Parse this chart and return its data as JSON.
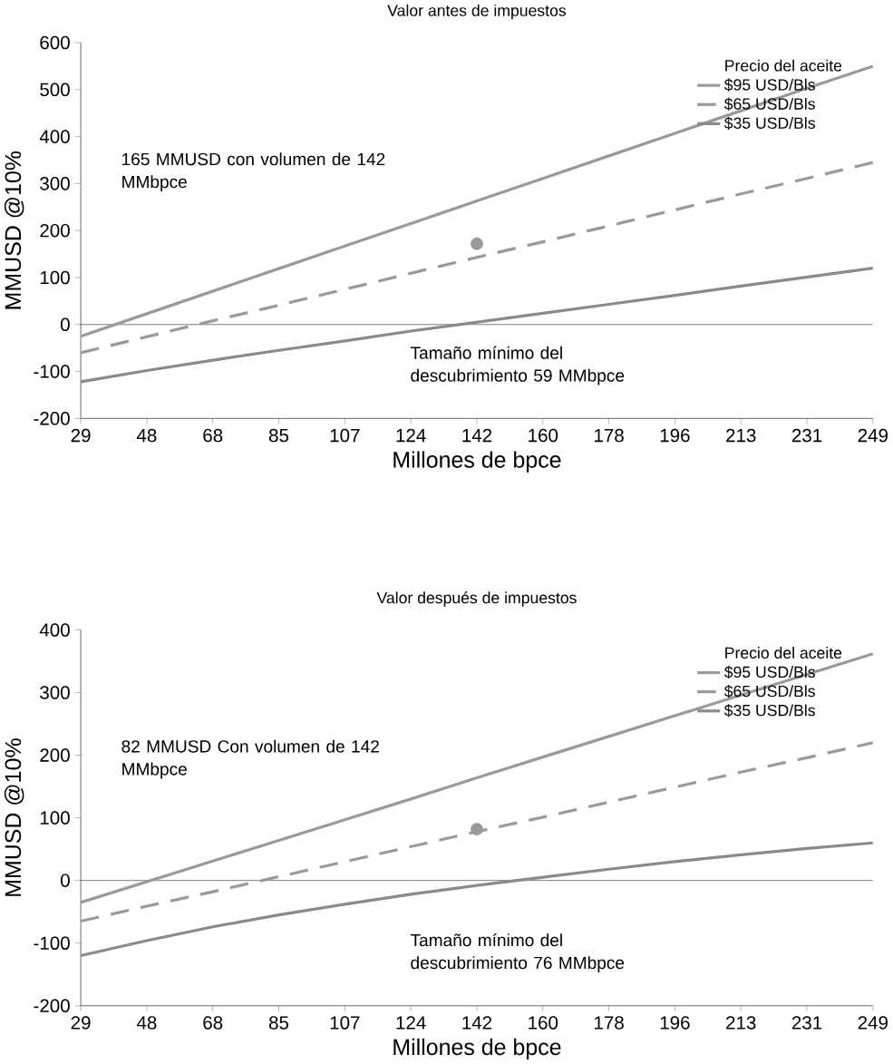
{
  "chart_data": [
    {
      "type": "line",
      "title": "Valor antes de impuestos",
      "xlabel": "Millones de bpce",
      "ylabel": "MMUSD @10%",
      "legend_title": "Precio del aceite",
      "categories": [
        "29",
        "48",
        "68",
        "85",
        "107",
        "124",
        "142",
        "160",
        "178",
        "196",
        "213",
        "231",
        "249"
      ],
      "series": [
        {
          "name": "$95 USD/Bls",
          "color": "#9a9a9a",
          "line_style": "solid",
          "values": [
            -25,
            23,
            71,
            119,
            167,
            215,
            263,
            311,
            359,
            407,
            455,
            503,
            550
          ]
        },
        {
          "name": "$65 USD/Bls",
          "color": "#9a9a9a",
          "line_style": "dashed",
          "values": [
            -60,
            -26,
            8,
            41,
            75,
            109,
            143,
            176,
            210,
            244,
            278,
            311,
            345
          ]
        },
        {
          "name": "$35 USD/Bls",
          "color": "#8a8a8a",
          "line_style": "solid",
          "values": [
            -122,
            -98,
            -76,
            -55,
            -35,
            -14,
            5,
            24,
            43,
            62,
            82,
            101,
            120
          ]
        },
        {
          "type": "scatter",
          "color": "#9a9a9a",
          "marker": "circle",
          "x": [
            "142"
          ],
          "values": [
            172
          ]
        }
      ],
      "ylim": [
        -200,
        600
      ],
      "yticks": [
        -200,
        -100,
        0,
        100,
        200,
        300,
        400,
        500,
        600
      ],
      "ref_lines": [
        {
          "axis": "y",
          "value": 0,
          "color": "#222222"
        }
      ],
      "legend": "top right",
      "annotations": [
        "165 MMUSD con volumen de 142 MMbpce",
        "Tamaño mínimo del descubrimiento 59 MMbpce"
      ]
    },
    {
      "type": "line",
      "title": "Valor después de impuestos",
      "xlabel": "Millones de bpce",
      "ylabel": "MMUSD @10%",
      "legend_title": "Precio del aceite",
      "categories": [
        "29",
        "48",
        "68",
        "85",
        "107",
        "124",
        "142",
        "160",
        "178",
        "196",
        "213",
        "231",
        "249"
      ],
      "series": [
        {
          "name": "$95 USD/Bls",
          "color": "#9a9a9a",
          "line_style": "solid",
          "values": [
            -35,
            -2,
            31,
            64,
            97,
            130,
            164,
            197,
            230,
            263,
            296,
            329,
            362
          ]
        },
        {
          "name": "$65 USD/Bls",
          "color": "#9a9a9a",
          "line_style": "dashed",
          "values": [
            -65,
            -41,
            -18,
            6,
            30,
            54,
            78,
            101,
            125,
            149,
            173,
            196,
            220
          ]
        },
        {
          "name": "$35 USD/Bls",
          "color": "#8a8a8a",
          "line_style": "solid",
          "values": [
            -120,
            -96,
            -74,
            -55,
            -38,
            -22,
            -8,
            5,
            18,
            30,
            41,
            51,
            60
          ]
        },
        {
          "type": "scatter",
          "color": "#9a9a9a",
          "marker": "circle",
          "x": [
            "142"
          ],
          "values": [
            82
          ]
        }
      ],
      "ylim": [
        -200,
        400
      ],
      "yticks": [
        -200,
        -100,
        0,
        100,
        200,
        300,
        400
      ],
      "ref_lines": [
        {
          "axis": "y",
          "value": 0,
          "color": "#222222"
        }
      ],
      "legend": "top right",
      "annotations": [
        "82 MMUSD Con volumen de 142 MMbpce",
        "Tamaño mínimo del descubrimiento 76 MMbpce"
      ]
    }
  ]
}
